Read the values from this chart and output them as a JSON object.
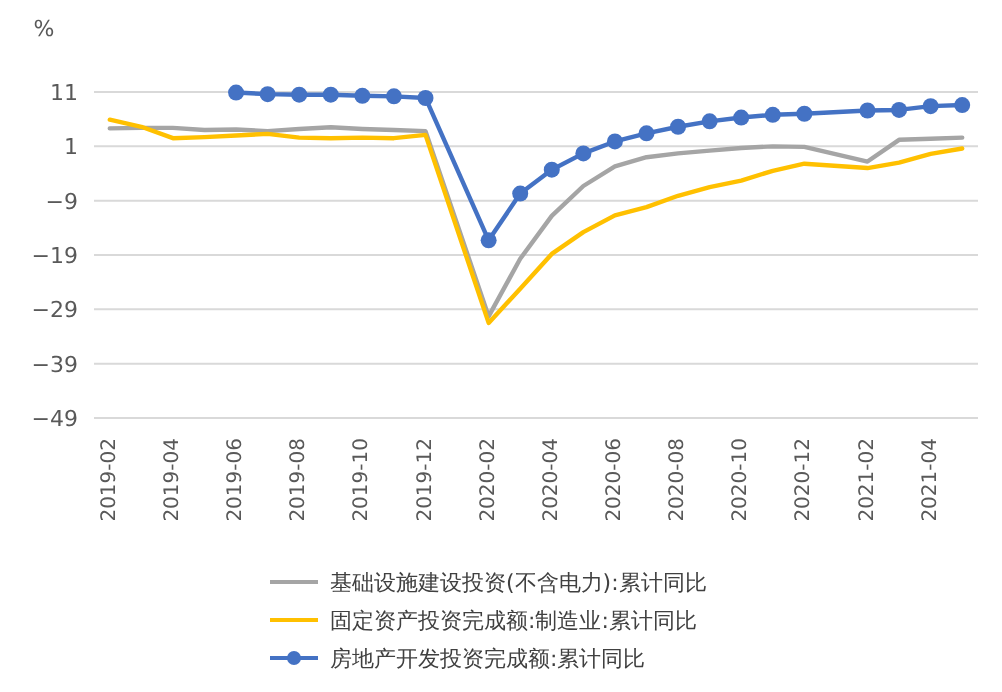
{
  "chart_data": {
    "type": "line",
    "ylabel": "%",
    "categories": [
      "2019-02",
      null,
      "2019-04",
      null,
      "2019-06",
      null,
      "2019-08",
      null,
      "2019-10",
      null,
      "2019-12",
      null,
      "2020-02",
      null,
      "2020-04",
      null,
      "2020-06",
      null,
      "2020-08",
      null,
      "2020-10",
      null,
      "2020-12",
      null,
      "2021-02",
      null,
      "2021-04",
      null
    ],
    "series": [
      {
        "name": "基础设施建设投资(不含电力):累计同比",
        "color": "#a5a5a5",
        "marker": "none",
        "values": [
          4.3,
          4.4,
          4.4,
          4.0,
          4.1,
          3.8,
          4.2,
          4.5,
          4.2,
          4.0,
          3.8,
          null,
          -30.3,
          -19.7,
          -11.8,
          -6.3,
          -2.7,
          -1.0,
          -0.3,
          0.2,
          0.7,
          1.0,
          0.9,
          null,
          -1.8,
          2.2,
          2.4,
          2.6
        ]
      },
      {
        "name": "固定资产投资完成额:制造业:累计同比",
        "color": "#ffc000",
        "marker": "none",
        "values": [
          5.9,
          4.6,
          2.5,
          2.7,
          3.0,
          3.3,
          2.6,
          2.5,
          2.6,
          2.5,
          3.1,
          null,
          -31.5,
          -25.2,
          -18.8,
          -14.8,
          -11.7,
          -10.2,
          -8.1,
          -6.5,
          -5.3,
          -3.5,
          -2.2,
          null,
          -3.0,
          -2.0,
          -0.4,
          0.6
        ]
      },
      {
        "name": "房地产开发投资完成额:累计同比",
        "color": "#4472c4",
        "marker": "circle",
        "values": [
          null,
          null,
          null,
          null,
          10.9,
          10.6,
          10.5,
          10.5,
          10.3,
          10.2,
          9.9,
          null,
          -16.3,
          -7.7,
          -3.3,
          -0.3,
          1.9,
          3.4,
          4.6,
          5.6,
          6.3,
          6.8,
          7.0,
          null,
          7.6,
          7.7,
          8.4,
          8.6
        ]
      }
    ],
    "ylim": [
      -49,
      11
    ],
    "yticks": [
      -49,
      -39,
      -29,
      -19,
      -9,
      1,
      11
    ],
    "grid": "y",
    "legend": "bottom",
    "line_style": "solid"
  }
}
